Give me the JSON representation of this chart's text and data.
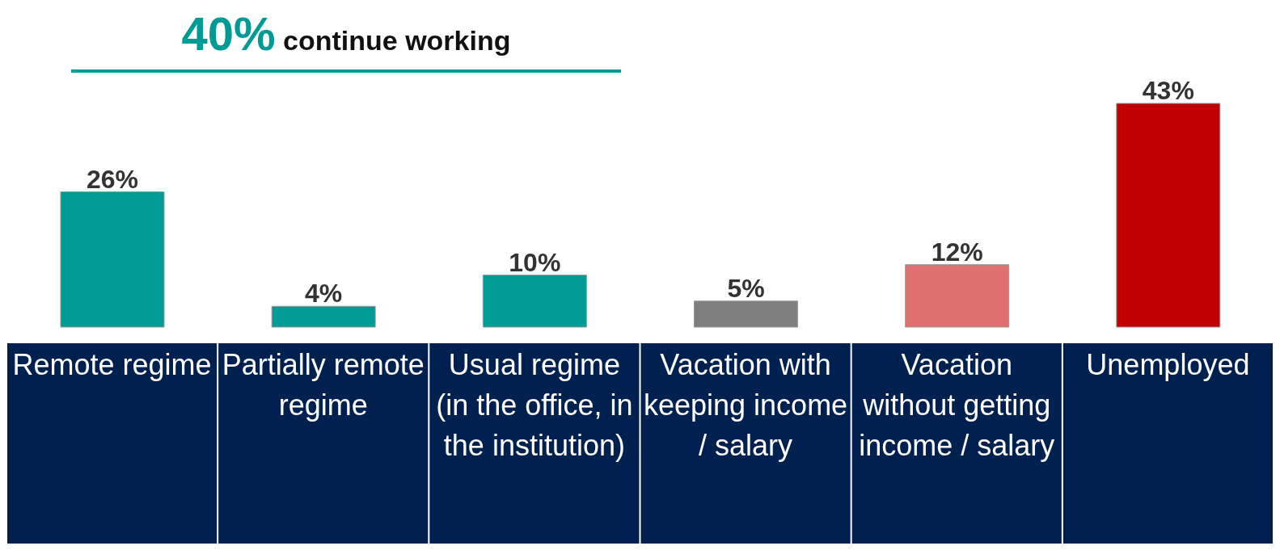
{
  "chart_data": {
    "type": "bar",
    "title": "40% continue working",
    "categories": [
      "Remote regime",
      "Partially remote regime",
      "Usual regime (in the office, in the institution)",
      "Vacation with keeping income / salary",
      "Vacation without getting income / salary",
      "Unemployed"
    ],
    "values": [
      26,
      4,
      10,
      5,
      12,
      43
    ],
    "colors": [
      "#009b95",
      "#009b95",
      "#009b95",
      "#7f7f7f",
      "#e07070",
      "#c00000"
    ],
    "value_labels": [
      "26%",
      "4%",
      "10%",
      "5%",
      "12%",
      "43%"
    ]
  }
}
